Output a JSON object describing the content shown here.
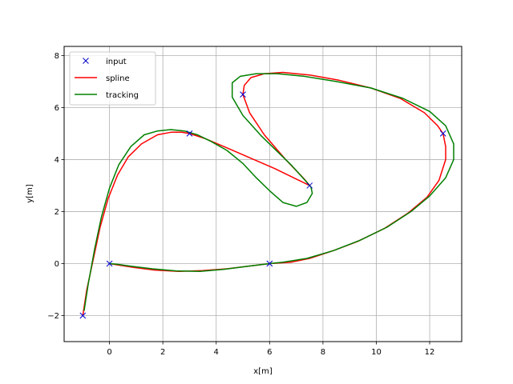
{
  "chart_data": {
    "type": "line",
    "title": "",
    "xlabel": "x[m]",
    "ylabel": "y[m]",
    "xlim": [
      -1.7,
      13.2
    ],
    "ylim": [
      -3.0,
      8.35
    ],
    "xticks": [
      0,
      2,
      4,
      6,
      8,
      10,
      12
    ],
    "yticks": [
      -2,
      0,
      2,
      4,
      6,
      8
    ],
    "xtick_labels": [
      "0",
      "2",
      "4",
      "6",
      "8",
      "10",
      "12"
    ],
    "ytick_labels": [
      "−2",
      "0",
      "2",
      "4",
      "6",
      "8"
    ],
    "grid": true,
    "legend_position": "top-left",
    "series": [
      {
        "name": "input",
        "style": "marker-x",
        "color": "#0000cc",
        "x": [
          -1.0,
          0.0,
          3.0,
          5.0,
          7.5,
          6.0,
          12.5
        ],
        "y": [
          -2.0,
          0.0,
          5.0,
          6.5,
          3.0,
          0.0,
          5.0
        ]
      },
      {
        "name": "spline",
        "style": "line",
        "color": "#ff0000",
        "x": [
          -1.0,
          -0.85,
          -0.6,
          -0.35,
          -0.05,
          0.3,
          0.7,
          1.2,
          1.8,
          2.3,
          2.7,
          3.0,
          3.6,
          4.4,
          5.3,
          6.2,
          7.0,
          7.5,
          7.3,
          6.6,
          5.8,
          5.25,
          5.0,
          5.05,
          5.3,
          5.8,
          6.5,
          7.5,
          8.6,
          9.8,
          10.9,
          11.8,
          12.3,
          12.5,
          12.6,
          12.6,
          12.35,
          11.9,
          11.2,
          10.3,
          9.3,
          8.4,
          7.5,
          6.8,
          6.0,
          5.2,
          4.4,
          3.5,
          2.6,
          1.7,
          0.9,
          0.3,
          0.0
        ],
        "y": [
          -2.0,
          -1.0,
          0.2,
          1.4,
          2.5,
          3.4,
          4.1,
          4.6,
          4.95,
          5.05,
          5.05,
          5.0,
          4.8,
          4.45,
          4.05,
          3.65,
          3.25,
          3.0,
          3.25,
          4.0,
          4.95,
          5.8,
          6.5,
          6.85,
          7.15,
          7.3,
          7.35,
          7.25,
          7.05,
          6.75,
          6.35,
          5.8,
          5.3,
          5.0,
          4.5,
          4.0,
          3.2,
          2.55,
          1.95,
          1.35,
          0.85,
          0.5,
          0.2,
          0.05,
          0.0,
          -0.1,
          -0.2,
          -0.27,
          -0.3,
          -0.25,
          -0.15,
          -0.05,
          0.0
        ]
      },
      {
        "name": "tracking",
        "style": "line",
        "color": "#008000",
        "x": [
          -0.95,
          -0.8,
          -0.55,
          -0.3,
          0.0,
          0.35,
          0.8,
          1.3,
          1.8,
          2.3,
          2.8,
          3.3,
          3.8,
          4.4,
          5.0,
          5.5,
          6.0,
          6.5,
          7.0,
          7.4,
          7.6,
          7.55,
          7.2,
          6.8,
          6.3,
          5.7,
          5.0,
          4.6,
          4.6,
          4.9,
          5.5,
          6.3,
          7.3,
          8.5,
          9.8,
          11.0,
          12.0,
          12.6,
          12.9,
          12.9,
          12.6,
          12.0,
          11.3,
          10.4,
          9.4,
          8.4,
          7.4,
          6.5,
          6.0,
          5.2,
          4.3,
          3.4,
          2.5,
          1.6,
          0.8,
          0.3,
          0.0
        ],
        "y": [
          -1.8,
          -0.8,
          0.6,
          1.8,
          2.9,
          3.8,
          4.5,
          4.95,
          5.1,
          5.15,
          5.1,
          4.95,
          4.7,
          4.35,
          3.85,
          3.3,
          2.8,
          2.35,
          2.2,
          2.35,
          2.7,
          2.95,
          3.35,
          3.8,
          4.3,
          4.9,
          5.7,
          6.4,
          6.95,
          7.2,
          7.3,
          7.3,
          7.2,
          7.0,
          6.75,
          6.35,
          5.85,
          5.3,
          4.6,
          4.0,
          3.3,
          2.6,
          2.0,
          1.4,
          0.9,
          0.5,
          0.2,
          0.05,
          0.0,
          -0.1,
          -0.22,
          -0.3,
          -0.28,
          -0.2,
          -0.1,
          -0.03,
          0.0
        ]
      }
    ]
  }
}
